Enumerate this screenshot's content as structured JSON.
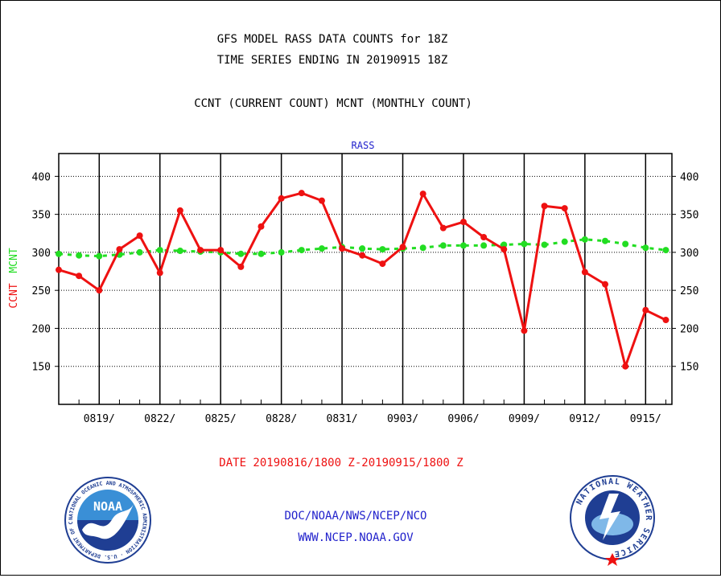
{
  "header": {
    "title_line1": "GFS MODEL RASS DATA COUNTS for 18Z",
    "title_line2": "TIME SERIES ENDING IN 20190915 18Z",
    "subtitle": "CCNT (CURRENT COUNT) MCNT (MONTHLY COUNT)"
  },
  "footer": {
    "date_range": "DATE 20190816/1800 Z-20190915/1800 Z",
    "agency": "DOC/NOAA/NWS/NCEP/NCO",
    "url": "WWW.NCEP.NOAA.GOV"
  },
  "logos": {
    "noaa_text": "NOAA",
    "noaa_ring": "NATIONAL OCEANIC AND ATMOSPHERIC ADMINISTRATION · U.S. DEPARTMENT OF COMMERCE",
    "nws_ring": "NATIONAL WEATHER SERVICE"
  },
  "colors": {
    "ccnt": "#ee1111",
    "mcnt": "#22dd22",
    "panel_label": "#2222cc",
    "footer_date": "#ee1111",
    "footer_links": "#2222cc"
  },
  "chart_data": {
    "type": "line",
    "panel_label": "RASS",
    "ylabel_ccnt": "CCNT",
    "ylabel_mcnt": "MCNT",
    "ylim": [
      100,
      430
    ],
    "yticks": [
      150,
      200,
      250,
      300,
      350,
      400
    ],
    "xlim": [
      0,
      30.3
    ],
    "xticks": [
      {
        "label": "0819/",
        "day": 2
      },
      {
        "label": "0822/",
        "day": 5
      },
      {
        "label": "0825/",
        "day": 8
      },
      {
        "label": "0828/",
        "day": 11
      },
      {
        "label": "0831/",
        "day": 14
      },
      {
        "label": "0903/",
        "day": 17
      },
      {
        "label": "0906/",
        "day": 20
      },
      {
        "label": "0909/",
        "day": 23
      },
      {
        "label": "0912/",
        "day": 26
      },
      {
        "label": "0915/",
        "day": 29
      }
    ],
    "grid": true,
    "series": [
      {
        "name": "CCNT",
        "style": "solid",
        "x": [
          0,
          1,
          2,
          3,
          4,
          5,
          6,
          7,
          8,
          9,
          10,
          11,
          12,
          13,
          14,
          15,
          16,
          17,
          18,
          19,
          20,
          21,
          22,
          23,
          24,
          25,
          26,
          27,
          28,
          29,
          30
        ],
        "values": [
          277,
          269,
          250,
          304,
          322,
          273,
          355,
          303,
          303,
          281,
          334,
          371,
          378,
          368,
          305,
          296,
          285,
          307,
          377,
          332,
          340,
          320,
          304,
          197,
          361,
          358,
          274,
          258,
          150,
          224,
          211
        ]
      },
      {
        "name": "MCNT",
        "style": "dashed",
        "x": [
          0,
          1,
          2,
          3,
          4,
          5,
          6,
          7,
          8,
          9,
          10,
          11,
          12,
          13,
          14,
          15,
          16,
          17,
          18,
          19,
          20,
          21,
          22,
          23,
          24,
          25,
          26,
          27,
          28,
          29,
          30
        ],
        "values": [
          298,
          296,
          295,
          297,
          300,
          303,
          302,
          301,
          300,
          298,
          298,
          300,
          303,
          305,
          307,
          305,
          304,
          305,
          306,
          309,
          309,
          309,
          310,
          311,
          310,
          314,
          317,
          315,
          311,
          306,
          303
        ]
      }
    ]
  }
}
